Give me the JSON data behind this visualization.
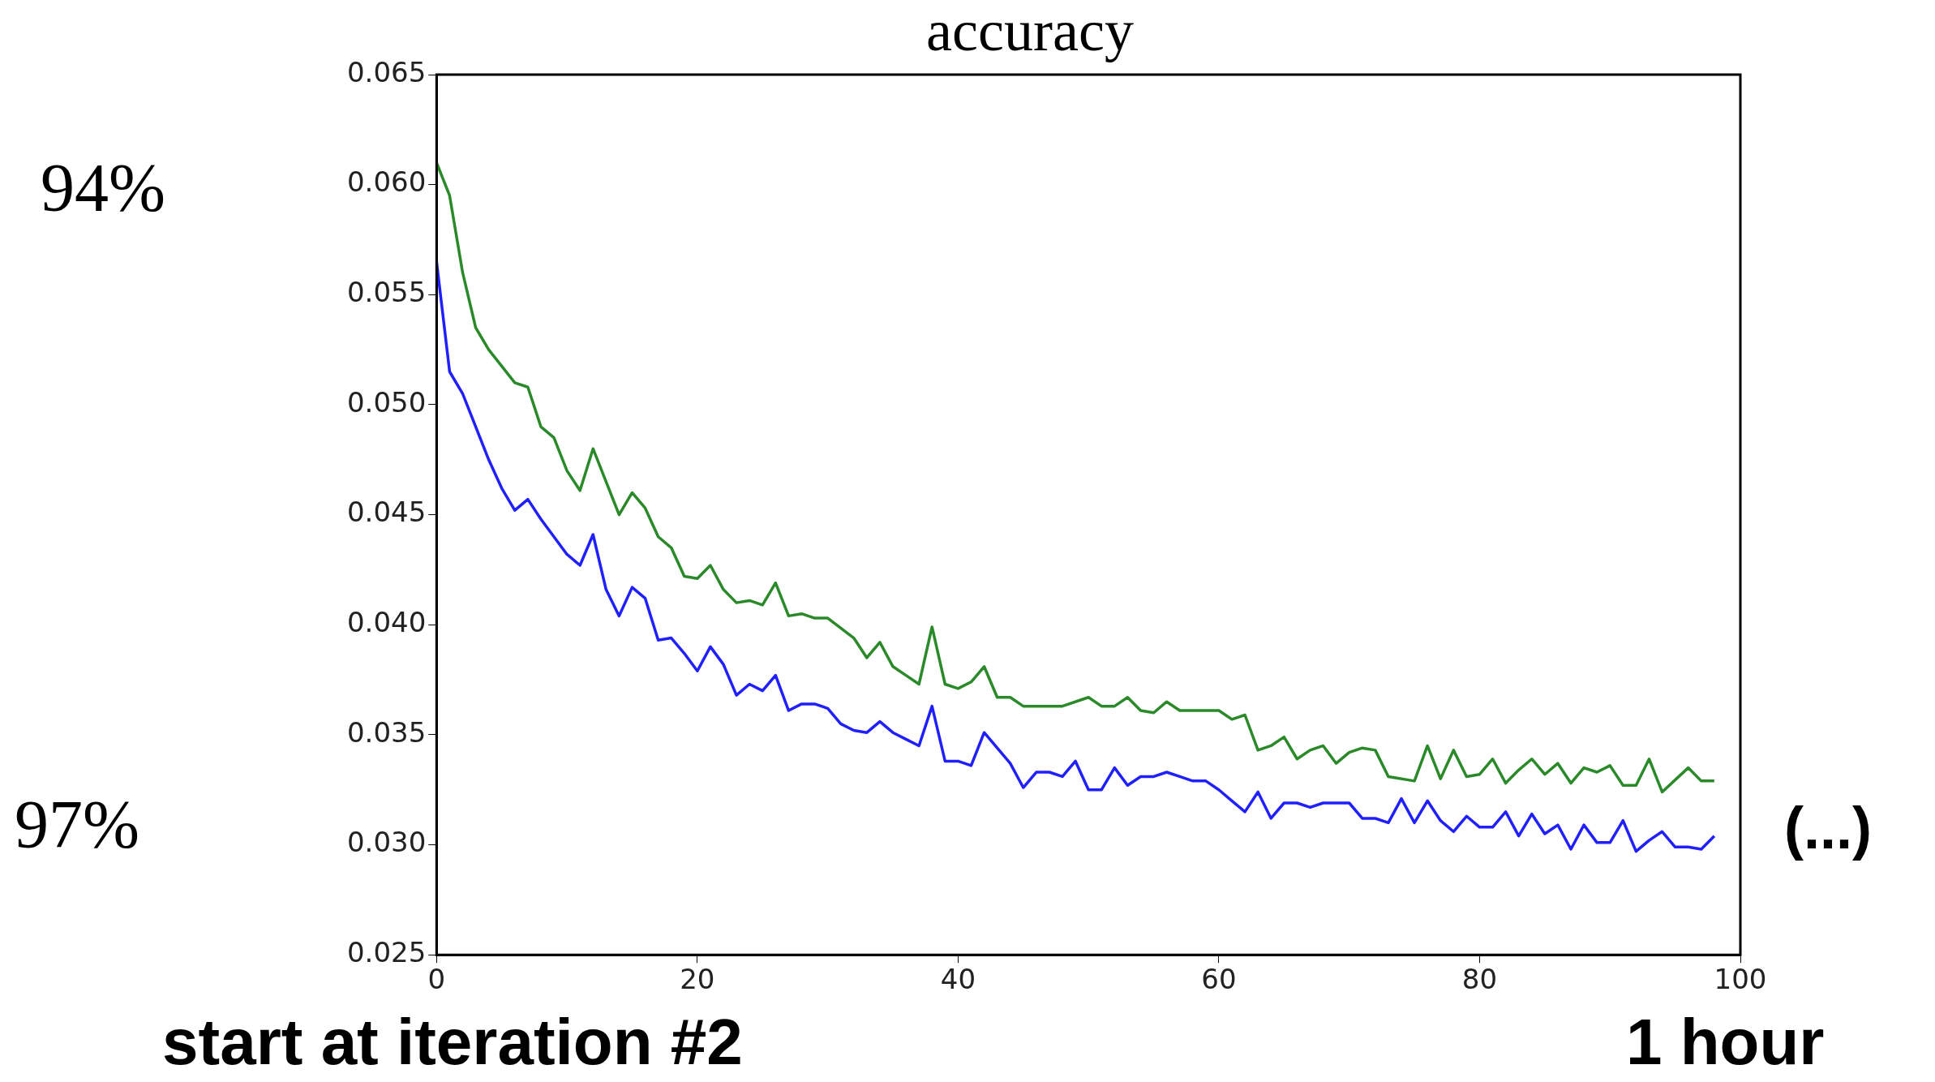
{
  "chart_data": {
    "type": "line",
    "title": "accuracy",
    "xlim": [
      0,
      100
    ],
    "xticks": [
      0,
      20,
      40,
      60,
      80,
      100
    ],
    "ylim": [
      0.025,
      0.065
    ],
    "yticks": [
      0.025,
      {
        "value": 0.03,
        "label": "0.030"
      },
      0.035,
      {
        "value": 0.04,
        "label": "0.040"
      },
      0.045,
      {
        "value": 0.05,
        "label": "0.050"
      },
      0.055,
      {
        "value": 0.06,
        "label": "0.060"
      },
      0.065
    ],
    "grid": false,
    "legend": false,
    "marker": "none",
    "line_style": "solid",
    "annotations": [
      "94%",
      "97%",
      "(...)",
      "start at iteration #2",
      "1 hour"
    ],
    "series": [
      {
        "color": "#2a8a2a",
        "x": [
          0,
          1,
          2,
          3,
          4,
          6,
          7,
          8,
          9,
          10,
          11,
          12,
          13,
          14,
          15,
          16,
          17,
          18,
          19,
          20,
          21,
          22,
          23,
          24,
          25,
          26,
          27,
          28,
          29,
          30,
          32,
          33,
          34,
          35,
          36,
          37,
          38,
          39,
          40,
          41,
          42,
          43,
          44,
          45,
          48,
          50,
          51,
          52,
          53,
          54,
          55,
          56,
          57,
          60,
          61,
          62,
          63,
          64,
          65,
          66,
          67,
          68,
          69,
          70,
          71,
          72,
          73,
          75,
          76,
          77,
          78,
          79,
          80,
          81,
          82,
          83,
          84,
          85,
          86,
          87,
          88,
          89,
          90,
          91,
          92,
          93,
          94,
          96,
          97,
          98
        ],
        "values": [
          0.061,
          0.0595,
          0.056,
          0.0535,
          0.0525,
          0.051,
          0.0508,
          0.049,
          0.0485,
          0.047,
          0.0461,
          0.048,
          0.0465,
          0.045,
          0.046,
          0.0453,
          0.044,
          0.0435,
          0.0422,
          0.0421,
          0.0427,
          0.0416,
          0.041,
          0.0411,
          0.0409,
          0.0419,
          0.0404,
          0.0405,
          0.0403,
          0.0403,
          0.0394,
          0.0385,
          0.0392,
          0.0381,
          0.0377,
          0.0373,
          0.0399,
          0.0373,
          0.0371,
          0.0374,
          0.0381,
          0.0367,
          0.0367,
          0.0363,
          0.0363,
          0.0367,
          0.0363,
          0.0363,
          0.0367,
          0.0361,
          0.036,
          0.0365,
          0.0361,
          0.0361,
          0.0357,
          0.0359,
          0.0343,
          0.0345,
          0.0349,
          0.0339,
          0.0343,
          0.0345,
          0.0337,
          0.0342,
          0.0344,
          0.0343,
          0.0331,
          0.0329,
          0.0345,
          0.033,
          0.0343,
          0.0331,
          0.0332,
          0.0339,
          0.0328,
          0.0334,
          0.0339,
          0.0332,
          0.0337,
          0.0328,
          0.0335,
          0.0333,
          0.0336,
          0.0327,
          0.0327,
          0.0339,
          0.0324,
          0.0335,
          0.0329,
          0.0329
        ]
      },
      {
        "color": "#1f1fff",
        "x": [
          0,
          1,
          2,
          3,
          4,
          5,
          6,
          7,
          8,
          10,
          11,
          12,
          13,
          14,
          15,
          16,
          17,
          18,
          19,
          20,
          21,
          22,
          23,
          24,
          25,
          26,
          27,
          28,
          29,
          30,
          31,
          32,
          33,
          34,
          35,
          36,
          37,
          38,
          39,
          40,
          41,
          42,
          43,
          44,
          45,
          46,
          47,
          48,
          49,
          50,
          51,
          52,
          53,
          54,
          55,
          56,
          57,
          58,
          59,
          60,
          61,
          62,
          63,
          64,
          65,
          66,
          67,
          68,
          69,
          70,
          71,
          72,
          73,
          74,
          75,
          76,
          77,
          78,
          79,
          80,
          81,
          82,
          83,
          84,
          85,
          86,
          87,
          88,
          89,
          90,
          91,
          92,
          93,
          94,
          95,
          96,
          97,
          98
        ],
        "values": [
          0.0565,
          0.0515,
          0.0505,
          0.049,
          0.0475,
          0.0462,
          0.0452,
          0.0457,
          0.0448,
          0.0432,
          0.0427,
          0.0441,
          0.0416,
          0.0404,
          0.0417,
          0.0412,
          0.0393,
          0.0394,
          0.0387,
          0.0379,
          0.039,
          0.0382,
          0.0368,
          0.0373,
          0.037,
          0.0377,
          0.0361,
          0.0364,
          0.0364,
          0.0362,
          0.0355,
          0.0352,
          0.0351,
          0.0356,
          0.0351,
          0.0348,
          0.0345,
          0.0363,
          0.0338,
          0.0338,
          0.0336,
          0.0351,
          0.0344,
          0.0337,
          0.0326,
          0.0333,
          0.0333,
          0.0331,
          0.0338,
          0.0325,
          0.0325,
          0.0335,
          0.0327,
          0.0331,
          0.0331,
          0.0333,
          0.0331,
          0.0329,
          0.0329,
          0.0325,
          0.032,
          0.0315,
          0.0324,
          0.0312,
          0.0319,
          0.0319,
          0.0317,
          0.0319,
          0.0319,
          0.0319,
          0.0312,
          0.0312,
          0.031,
          0.0321,
          0.031,
          0.032,
          0.0311,
          0.0306,
          0.0313,
          0.0308,
          0.0308,
          0.0315,
          0.0304,
          0.0314,
          0.0305,
          0.0309,
          0.0298,
          0.0309,
          0.0301,
          0.0301,
          0.0311,
          0.0297,
          0.0302,
          0.0306,
          0.0299,
          0.0299,
          0.0298,
          0.0304
        ]
      }
    ]
  }
}
